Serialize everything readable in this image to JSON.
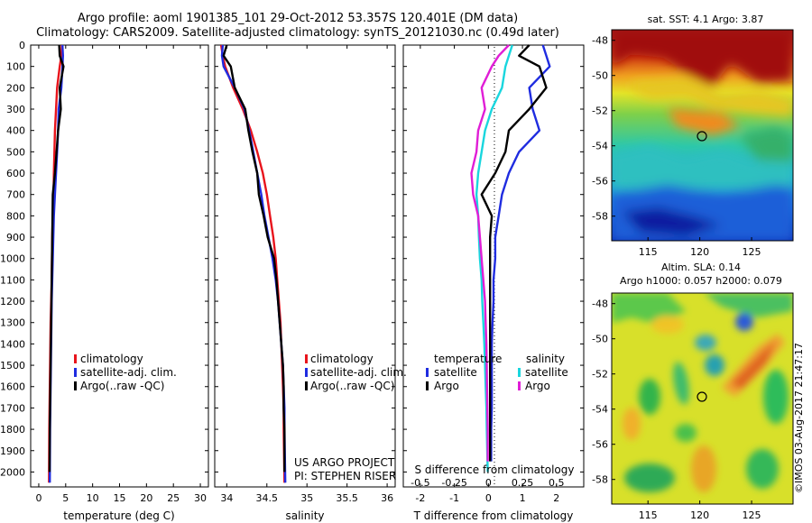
{
  "title": {
    "line1": "Argo profile: aoml 1901385_101 29-Oct-2012 53.357S 120.401E (DM data)",
    "line2": "Climatology: CARS2009. Satellite-adjusted climatology: synTS_20121030.nc (0.49d later)"
  },
  "depth_axis": {
    "ticks": [
      0,
      100,
      200,
      300,
      400,
      500,
      600,
      700,
      800,
      900,
      1000,
      1100,
      1200,
      1300,
      1400,
      1500,
      1600,
      1700,
      1800,
      1900,
      2000
    ],
    "ylim": [
      0,
      2070
    ]
  },
  "colors": {
    "climatology": "#e8141c",
    "satellite": "#1f2ce0",
    "argo": "#000000",
    "salinity_satellite": "#19d6de",
    "salinity_argo": "#e01ed6"
  },
  "legend_profile": {
    "climatology": "climatology",
    "satellite": "satellite-adj. clim.",
    "argo": "Argo(..raw -QC)"
  },
  "legend_diff": {
    "temperature_header": "temperature",
    "salinity_header": "salinity",
    "satellite": "satellite",
    "argo": "Argo"
  },
  "project": {
    "line1": "US ARGO PROJECT",
    "line2": "PI: STEPHEN RISER"
  },
  "map_sst": {
    "title": "sat. SST: 4.1  Argo: 3.87",
    "x_ticks": [
      "115",
      "120",
      "125"
    ],
    "y_ticks": [
      "-48",
      "-50",
      "-52",
      "-54",
      "-56",
      "-58"
    ]
  },
  "map_sla": {
    "title1": "Altim. SLA: 0.14",
    "title2": "Argo h1000: 0.057 h2000: 0.079",
    "x_ticks": [
      "115",
      "120",
      "125"
    ],
    "y_ticks": [
      "-48",
      "-50",
      "-52",
      "-54",
      "-56",
      "-58"
    ]
  },
  "stamp": "©IMOS 03-Aug-2017 21:47:17",
  "chart_data": [
    {
      "type": "line",
      "xlabel": "temperature (deg C)",
      "ylabel": "",
      "xlim": [
        -1.5,
        31.5
      ],
      "x_ticks": [
        0,
        5,
        10,
        15,
        20,
        25,
        30
      ],
      "series": [
        {
          "name": "climatology",
          "x": [
            4.3,
            4.2,
            3.9,
            3.4,
            3.2,
            3.0,
            2.9,
            2.8,
            2.75,
            2.6,
            2.5,
            2.45,
            2.4,
            2.3,
            2.2,
            2.15,
            2.1,
            2.05,
            2.0,
            1.95,
            1.9
          ],
          "y": [
            0,
            50,
            100,
            200,
            300,
            400,
            500,
            600,
            700,
            800,
            900,
            1000,
            1100,
            1200,
            1300,
            1400,
            1500,
            1600,
            1700,
            1800,
            2050
          ]
        },
        {
          "name": "satellite-adj. clim.",
          "x": [
            4.4,
            4.5,
            4.4,
            4.2,
            3.7,
            3.6,
            3.4,
            3.2,
            3.0,
            2.8,
            2.7,
            2.6,
            2.5,
            2.4,
            2.35,
            2.3,
            2.25,
            2.2,
            2.15,
            2.1,
            2.05
          ],
          "y": [
            0,
            50,
            100,
            200,
            300,
            400,
            500,
            600,
            700,
            800,
            900,
            1000,
            1100,
            1200,
            1300,
            1400,
            1500,
            1600,
            1700,
            1800,
            2050
          ]
        },
        {
          "name": "Argo(..raw -QC)",
          "x": [
            3.8,
            3.9,
            4.6,
            3.9,
            4.1,
            3.6,
            3.3,
            3.0,
            2.6,
            2.55,
            2.5,
            2.45,
            2.4,
            2.35,
            2.3,
            2.25,
            2.2,
            2.15,
            2.1,
            2.05,
            2.0
          ],
          "y": [
            0,
            50,
            100,
            200,
            300,
            400,
            500,
            600,
            700,
            800,
            900,
            1000,
            1100,
            1200,
            1300,
            1400,
            1500,
            1600,
            1700,
            1800,
            2000
          ]
        }
      ]
    },
    {
      "type": "line",
      "xlabel": "salinity",
      "ylabel": "",
      "xlim": [
        33.85,
        36.1
      ],
      "x_ticks": [
        34,
        34.5,
        35,
        35.5,
        36
      ],
      "series": [
        {
          "name": "climatology",
          "x": [
            33.93,
            33.95,
            33.98,
            34.08,
            34.2,
            34.3,
            34.38,
            34.45,
            34.5,
            34.54,
            34.58,
            34.61,
            34.63,
            34.65,
            34.67,
            34.68,
            34.69,
            34.7,
            34.71,
            34.71,
            34.72
          ],
          "y": [
            0,
            50,
            100,
            200,
            300,
            400,
            500,
            600,
            700,
            800,
            900,
            1000,
            1100,
            1200,
            1300,
            1400,
            1500,
            1600,
            1700,
            1800,
            2050
          ]
        },
        {
          "name": "satellite-adj. clim.",
          "x": [
            33.95,
            33.94,
            33.96,
            34.1,
            34.22,
            34.28,
            34.33,
            34.38,
            34.43,
            34.47,
            34.52,
            34.57,
            34.61,
            34.64,
            34.66,
            34.68,
            34.7,
            34.71,
            34.72,
            34.72,
            34.73
          ],
          "y": [
            0,
            50,
            100,
            200,
            300,
            400,
            500,
            600,
            700,
            800,
            900,
            1000,
            1100,
            1200,
            1300,
            1400,
            1500,
            1600,
            1700,
            1800,
            2050
          ]
        },
        {
          "name": "Argo(..raw -QC)",
          "x": [
            34.0,
            33.96,
            34.05,
            34.1,
            34.23,
            34.27,
            34.32,
            34.38,
            34.4,
            34.46,
            34.51,
            34.59,
            34.62,
            34.64,
            34.66,
            34.68,
            34.7,
            34.71,
            34.71,
            34.72,
            34.72
          ],
          "y": [
            0,
            50,
            100,
            200,
            300,
            400,
            500,
            600,
            700,
            800,
            900,
            1000,
            1100,
            1200,
            1300,
            1400,
            1500,
            1600,
            1700,
            1800,
            2000
          ]
        }
      ]
    },
    {
      "type": "line",
      "xlabel": "T difference from climatology",
      "x_tick_values": [
        -2,
        -1,
        0,
        1,
        2
      ],
      "xlim": [
        -2.5,
        2.8
      ],
      "secondary_xlabel": "S difference from climatology",
      "secondary_ticks": [
        "-0.5",
        "-0.25",
        "0",
        "0.25",
        "0.5"
      ],
      "secondary_tick_positions_T": [
        -2,
        -1,
        0,
        1,
        2
      ],
      "series": [
        {
          "name": "temperature satellite",
          "x": [
            1.6,
            1.7,
            1.8,
            1.2,
            1.3,
            1.5,
            0.9,
            0.6,
            0.4,
            0.3,
            0.2,
            0.2,
            0.15,
            0.15,
            0.12,
            0.1,
            0.1,
            0.1,
            0.1,
            0.08,
            0.08
          ],
          "y": [
            0,
            50,
            100,
            200,
            300,
            400,
            500,
            600,
            700,
            800,
            900,
            1000,
            1100,
            1200,
            1300,
            1400,
            1500,
            1600,
            1700,
            1800,
            1950
          ]
        },
        {
          "name": "temperature Argo",
          "x": [
            1.2,
            0.9,
            1.5,
            1.7,
            1.2,
            0.6,
            0.5,
            0.2,
            -0.2,
            0.1,
            0.05,
            0.05,
            0.05,
            0.05,
            0.05,
            0.05,
            0.05,
            0.05,
            0.05,
            0.05,
            0.05
          ],
          "y": [
            0,
            50,
            100,
            200,
            300,
            400,
            500,
            600,
            700,
            800,
            900,
            1000,
            1100,
            1200,
            1300,
            1400,
            1500,
            1600,
            1700,
            1800,
            1950
          ]
        },
        {
          "name": "salinity satellite",
          "x": [
            0.7,
            0.6,
            0.5,
            0.4,
            0.1,
            -0.1,
            -0.2,
            -0.3,
            -0.35,
            -0.3,
            -0.28,
            -0.25,
            -0.2,
            -0.18,
            -0.15,
            -0.12,
            -0.1,
            -0.08,
            -0.06,
            -0.05,
            -0.02
          ],
          "y": [
            0,
            50,
            100,
            200,
            300,
            400,
            500,
            600,
            700,
            800,
            900,
            1000,
            1100,
            1200,
            1300,
            1400,
            1500,
            1600,
            1700,
            1800,
            2000
          ]
        },
        {
          "name": "salinity Argo",
          "x": [
            0.6,
            0.3,
            0.1,
            -0.2,
            -0.1,
            -0.3,
            -0.35,
            -0.5,
            -0.45,
            -0.3,
            -0.25,
            -0.2,
            -0.15,
            -0.1,
            -0.08,
            -0.06,
            -0.05,
            -0.04,
            -0.03,
            -0.02,
            -0.02
          ],
          "y": [
            0,
            50,
            100,
            200,
            300,
            400,
            500,
            600,
            700,
            800,
            900,
            1000,
            1100,
            1200,
            1300,
            1400,
            1500,
            1600,
            1700,
            1800,
            1950
          ]
        }
      ]
    },
    {
      "type": "heatmap",
      "title": "sat. SST: 4.1  Argo: 3.87",
      "xlim": [
        111.5,
        129
      ],
      "ylim": [
        -59.4,
        -47.4
      ],
      "marker": {
        "lon": 120.401,
        "lat": -53.357
      }
    },
    {
      "type": "heatmap",
      "title": "Altim. SLA: 0.14",
      "xlim": [
        111.5,
        129
      ],
      "ylim": [
        -59.4,
        -47.4
      ],
      "marker": {
        "lon": 120.401,
        "lat": -53.357
      }
    }
  ]
}
